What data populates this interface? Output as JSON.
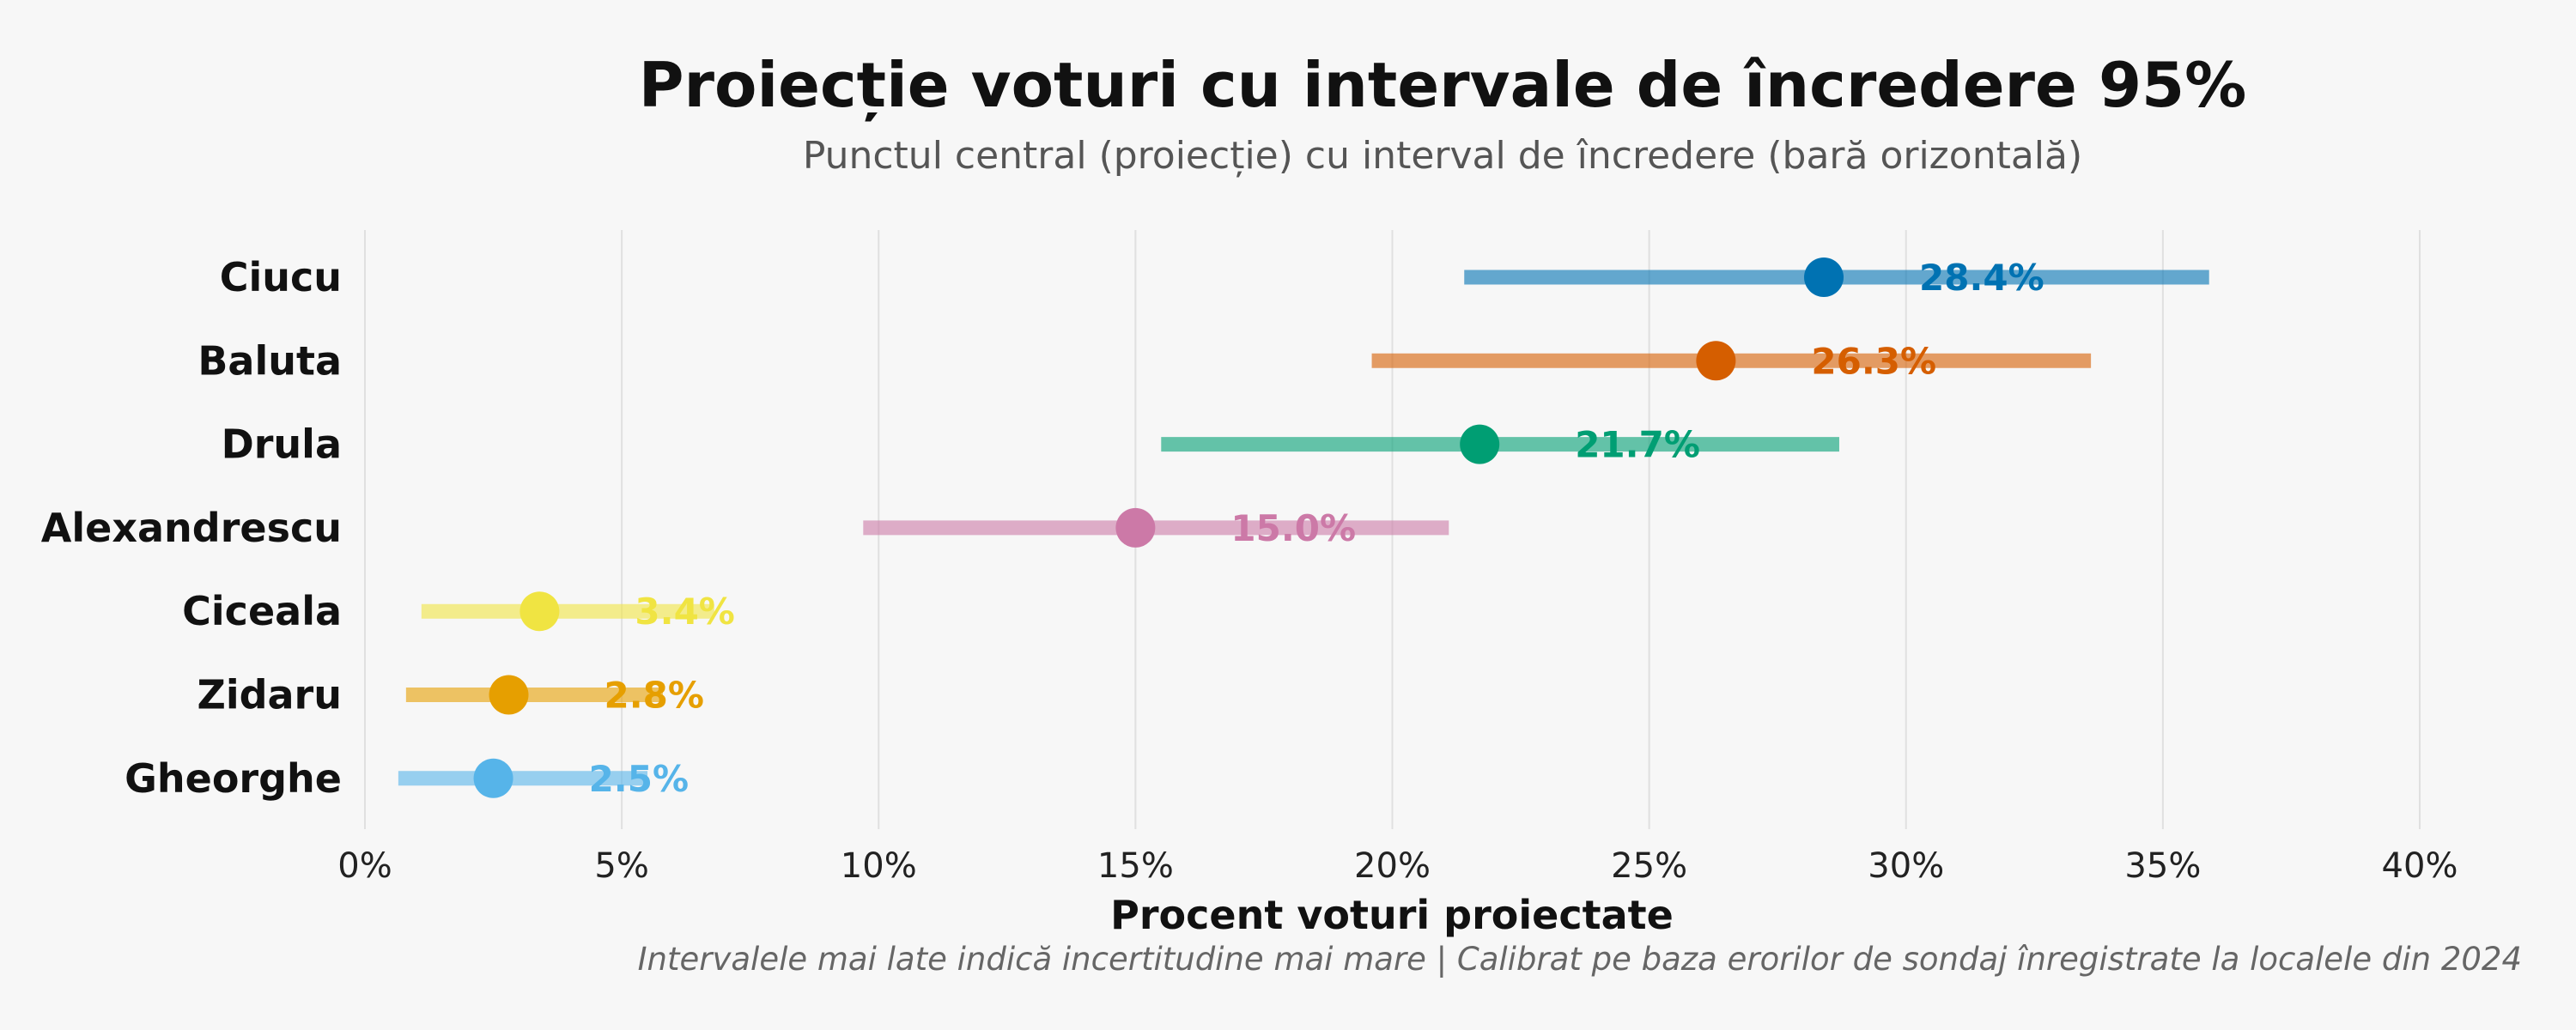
{
  "chart_data": {
    "type": "dot-interval",
    "title": "Proiecție voturi cu intervale de încredere 95%",
    "subtitle": "Punctul central (proiecție) cu interval de încredere (bară orizontală)",
    "xlabel": "Procent voturi proiectate",
    "caption": "Intervalele mai late indică incertitudine mai mare | Calibrat pe baza erorilor de sondaj înregistrate la localele din 2024",
    "xlim": [
      0,
      40
    ],
    "xticks": [
      0,
      5,
      10,
      15,
      20,
      25,
      30,
      35,
      40
    ],
    "xtick_labels": [
      "0%",
      "5%",
      "10%",
      "15%",
      "20%",
      "25%",
      "30%",
      "35%",
      "40%"
    ],
    "grid": "vertical",
    "series": [
      {
        "name": "Ciucu",
        "value": 28.4,
        "low": 21.4,
        "high": 35.9,
        "label": "28.4%",
        "color": "#0072B2"
      },
      {
        "name": "Baluta",
        "value": 26.3,
        "low": 19.6,
        "high": 33.6,
        "label": "26.3%",
        "color": "#D55E00"
      },
      {
        "name": "Drula",
        "value": 21.7,
        "low": 15.5,
        "high": 28.7,
        "label": "21.7%",
        "color": "#009E73"
      },
      {
        "name": "Alexandrescu",
        "value": 15.0,
        "low": 9.7,
        "high": 21.1,
        "label": "15.0%",
        "color": "#CC79A7"
      },
      {
        "name": "Ciceala",
        "value": 3.4,
        "low": 1.1,
        "high": 6.8,
        "label": "3.4%",
        "color": "#F0E442"
      },
      {
        "name": "Zidaru",
        "value": 2.8,
        "low": 0.8,
        "high": 5.8,
        "label": "2.8%",
        "color": "#E69F00"
      },
      {
        "name": "Gheorghe",
        "value": 2.5,
        "low": 0.65,
        "high": 5.5,
        "label": "2.5%",
        "color": "#56B4E9"
      }
    ]
  }
}
